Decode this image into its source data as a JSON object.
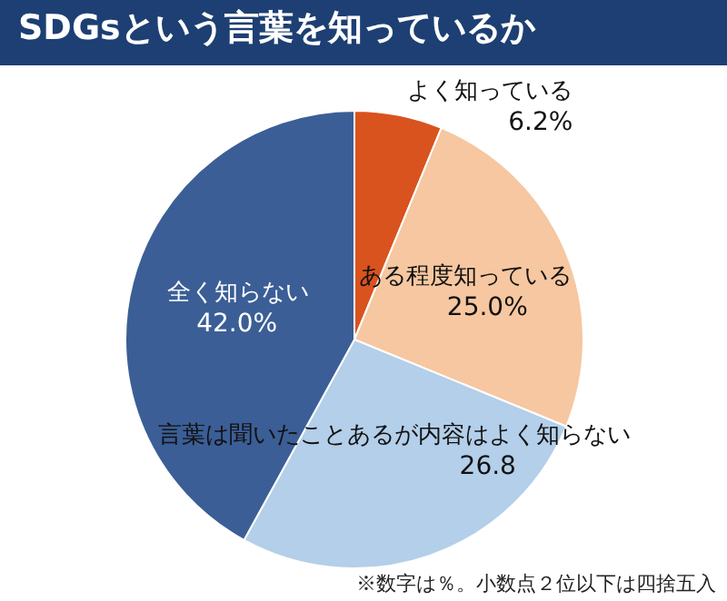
{
  "chart_data": {
    "type": "pie",
    "title": "SDGsという言葉を知っているか",
    "categories": [
      "よく知っている",
      "ある程度知っている",
      "言葉は聞いたことあるが内容はよく知らない",
      "全く知らない"
    ],
    "values": [
      6.2,
      25.0,
      26.8,
      42.0
    ],
    "colors": [
      "#d9531e",
      "#f6c7a0",
      "#b3cfe9",
      "#3b5e96"
    ],
    "value_labels": [
      "6.2%",
      "25.0%",
      "26.8",
      "42.0%"
    ],
    "annotations": [
      "※数字は％。小数点２位以下は四捨五入"
    ],
    "legend": false
  }
}
